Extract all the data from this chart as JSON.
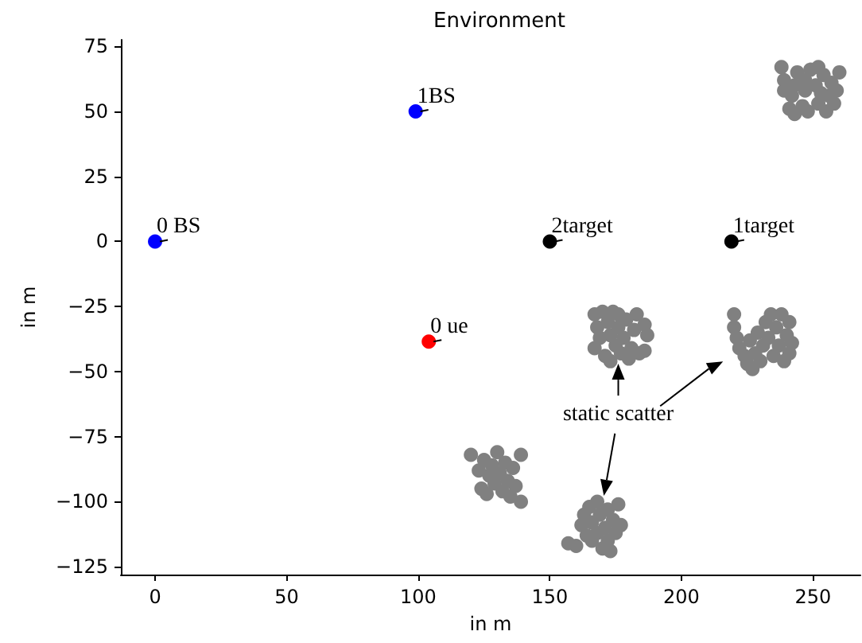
{
  "chart_data": {
    "type": "scatter",
    "title": "Environment",
    "xlabel": "in m",
    "ylabel": "in m",
    "xlim": [
      -13,
      268
    ],
    "ylim": [
      -128,
      77.5
    ],
    "xticks": [
      0,
      50,
      100,
      150,
      200,
      250
    ],
    "yticks": [
      -125,
      -100,
      -75,
      -50,
      -25,
      0,
      25,
      50,
      75
    ],
    "grid": false,
    "marker": "circle",
    "series": [
      {
        "color": "#0000ff",
        "x": [
          0,
          99
        ],
        "values": [
          0,
          50
        ]
      },
      {
        "color": "#ff0000",
        "x": [
          104
        ],
        "values": [
          -38.5
        ]
      },
      {
        "color": "#000000",
        "x": [
          150,
          219
        ],
        "values": [
          0,
          0
        ]
      },
      {
        "color": "#808080",
        "x": [
          238,
          239,
          239,
          241,
          243,
          242,
          243,
          244,
          246,
          247,
          247,
          248,
          249,
          251,
          252,
          252,
          253,
          254,
          255,
          256,
          258,
          259,
          260,
          257
        ],
        "values": [
          67,
          62,
          58,
          51,
          49,
          56,
          60,
          65,
          52,
          58,
          62,
          50,
          66,
          60,
          67,
          53,
          57,
          64,
          50,
          56,
          53,
          58,
          65,
          61
        ]
      },
      {
        "color": "#808080",
        "x": [
          167,
          168,
          167,
          169,
          170,
          171,
          172,
          173,
          173,
          174,
          175,
          176,
          176,
          177,
          178,
          179,
          180,
          181,
          182,
          183,
          184,
          186,
          187,
          186
        ],
        "values": [
          -28,
          -33,
          -41,
          -37,
          -27,
          -44,
          -31,
          -36,
          -46,
          -27,
          -40,
          -33,
          -28,
          -43,
          -37,
          -30,
          -45,
          -41,
          -34,
          -28,
          -43,
          -32,
          -36,
          -42
        ]
      },
      {
        "color": "#808080",
        "x": [
          220,
          220,
          221,
          222,
          224,
          225,
          226,
          227,
          228,
          229,
          230,
          231,
          232,
          233,
          234,
          235,
          236,
          237,
          238,
          239,
          240,
          241,
          241,
          242
        ],
        "values": [
          -28,
          -33,
          -37,
          -41,
          -44,
          -47,
          -38,
          -49,
          -43,
          -35,
          -46,
          -40,
          -31,
          -37,
          -28,
          -44,
          -33,
          -40,
          -28,
          -46,
          -36,
          -31,
          -43,
          -39
        ]
      },
      {
        "color": "#808080",
        "x": [
          120,
          123,
          124,
          125,
          126,
          127,
          128,
          129,
          130,
          131,
          132,
          133,
          134,
          135,
          136,
          137,
          139,
          139
        ],
        "values": [
          -82,
          -88,
          -95,
          -84,
          -97,
          -90,
          -86,
          -93,
          -81,
          -89,
          -96,
          -85,
          -92,
          -98,
          -87,
          -94,
          -82,
          -100
        ]
      },
      {
        "color": "#808080",
        "x": [
          157,
          160,
          162,
          163,
          164,
          165,
          166,
          168,
          168,
          169,
          170,
          171,
          172,
          172,
          173,
          174,
          175,
          176,
          177,
          166
        ],
        "values": [
          -116,
          -117,
          -109,
          -105,
          -113,
          -102,
          -108,
          -100,
          -112,
          -105,
          -118,
          -110,
          -103,
          -115,
          -119,
          -107,
          -112,
          -101,
          -109,
          -115
        ]
      }
    ],
    "annotations": [
      {
        "text": "0 BS",
        "x": 0,
        "y": 0
      },
      {
        "text": "1BS",
        "x": 99,
        "y": 50
      },
      {
        "text": "2target",
        "x": 150,
        "y": 0
      },
      {
        "text": "1target",
        "x": 219,
        "y": 0
      },
      {
        "text": "0 ue",
        "x": 104,
        "y": -38.5
      },
      {
        "text": "static scatter",
        "x": 176,
        "y": -47
      }
    ]
  }
}
